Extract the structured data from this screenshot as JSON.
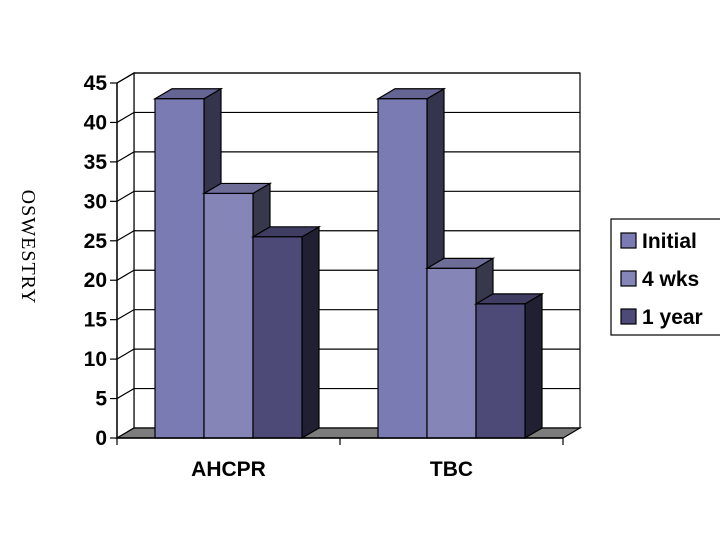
{
  "chart_data": {
    "type": "bar",
    "ylabel": "OSWESTRY",
    "ylim": [
      0,
      45
    ],
    "yticks": [
      0,
      5,
      10,
      15,
      20,
      25,
      30,
      35,
      40,
      45
    ],
    "categories": [
      "AHCPR",
      "TBC"
    ],
    "series": [
      {
        "name": "Initial",
        "values": [
          43,
          43
        ],
        "color": "#7b7bb4"
      },
      {
        "name": "4 wks",
        "values": [
          31,
          21.5
        ],
        "color": "#8585b8"
      },
      {
        "name": "1 year",
        "values": [
          25.5,
          17
        ],
        "color": "#4e4a78"
      }
    ],
    "grid": true,
    "legend": "right"
  }
}
